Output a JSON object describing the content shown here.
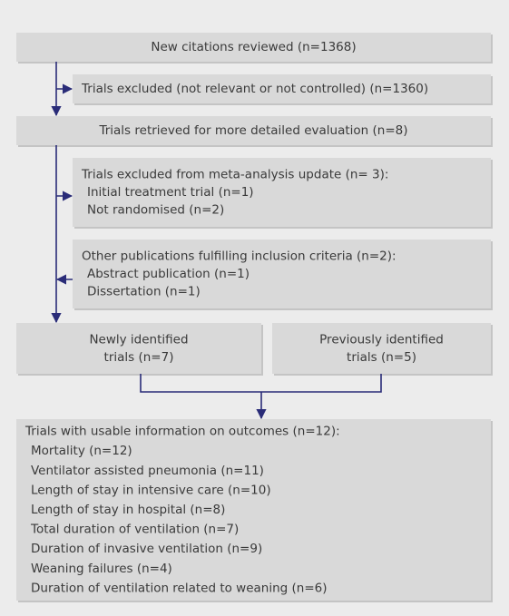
{
  "nodes": [
    {
      "lines": [
        "New citations reviewed (n=1368)"
      ]
    },
    {
      "lines": [
        "Trials excluded (not relevant or not controlled) (n=1360)"
      ]
    },
    {
      "lines": [
        "Trials retrieved for more detailed evaluation (n=8)"
      ]
    },
    {
      "lines": [
        "Trials excluded from meta-analysis update (n= 3):",
        "Initial treatment trial (n=1)",
        "Not randomised (n=2)"
      ]
    },
    {
      "lines": [
        "Other publications fulfilling inclusion criteria (n=2):",
        "Abstract publication (n=1)",
        "Dissertation (n=1)"
      ]
    },
    {
      "lines": [
        "Newly identified",
        "trials (n=7)"
      ]
    },
    {
      "lines": [
        "Previously identified",
        "trials (n=5)"
      ]
    },
    {
      "lines": [
        "Trials with usable information on outcomes (n=12):",
        "Mortality (n=12)",
        "Ventilator assisted pneumonia (n=11)",
        "Length of stay in intensive care (n=10)",
        "Length of stay in hospital (n=8)",
        "Total duration of ventilation (n=7)",
        "Duration of invasive ventilation (n=9)",
        "Weaning failures (n=4)",
        "Duration of ventilation related to weaning (n=6)"
      ]
    }
  ]
}
